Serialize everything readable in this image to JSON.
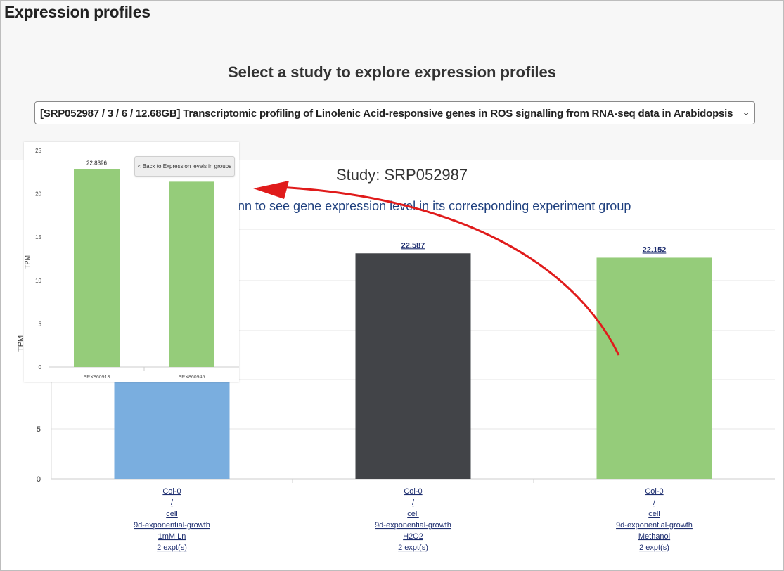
{
  "page": {
    "heading": "Expression profiles",
    "select_title": "Select a study to explore expression profiles",
    "study_select": {
      "value": "[SRP052987 / 3 / 6 / 12.68GB] Transcriptomic profiling of Linolenic Acid-responsive genes in ROS signalling from RNA-seq data in Arabidopsis",
      "chevron": "chevron-down-icon"
    }
  },
  "chart_panel": {
    "title": "Study: SRP052987",
    "instruction": "nn to see gene expression level in its corresponding experiment group"
  },
  "colors": {
    "bar_blue": "#7aaedf",
    "bar_dark": "#424448",
    "bar_green": "#95cc7a",
    "arrow": "#e01b1b",
    "link": "#1f2f70"
  },
  "chart_data": [
    {
      "type": "bar",
      "title": "",
      "xlabel": "",
      "ylabel": "TPM",
      "ylim": [
        0,
        25
      ],
      "yticks": [
        0,
        5
      ],
      "grid": true,
      "categories": [
        {
          "lines": [
            "Col-0",
            "/",
            "cell",
            "9d-exponential-growth",
            "1mM Ln",
            "2 expt(s)"
          ]
        },
        {
          "lines": [
            "Col-0",
            "/",
            "cell",
            "9d-exponential-growth",
            "H2O2",
            "2 expt(s)"
          ]
        },
        {
          "lines": [
            "Col-0",
            "/",
            "cell",
            "9d-exponential-growth",
            "Methanol",
            "2 expt(s)"
          ]
        }
      ],
      "values": [
        22.84,
        22.587,
        22.152
      ],
      "value_labels": [
        "",
        "22.587",
        "22.152"
      ],
      "colors": [
        "#7aaedf",
        "#424448",
        "#95cc7a"
      ]
    },
    {
      "type": "bar",
      "title": "",
      "ylabel": "TPM",
      "ylim": [
        0,
        25
      ],
      "yticks": [
        "0",
        "5",
        "10",
        "15",
        "20",
        "25"
      ],
      "grid": false,
      "categories": [
        "SRX860913",
        "SRX860945"
      ],
      "values": [
        22.8396,
        21.4
      ],
      "value_labels": [
        "22.8396",
        ""
      ],
      "colors": [
        "#95cc7a",
        "#95cc7a"
      ],
      "back_button": "< Back to Expression levels in groups"
    }
  ]
}
